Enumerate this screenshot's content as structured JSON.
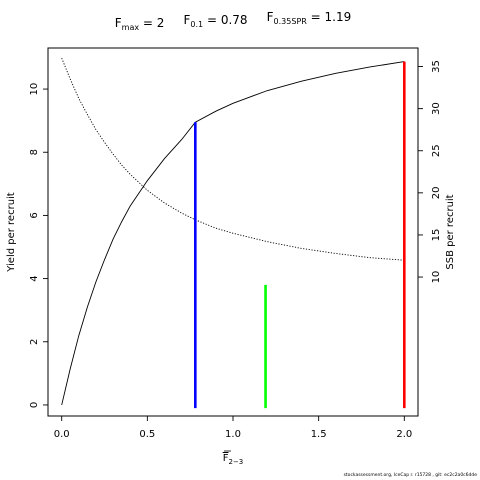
{
  "chart_data": {
    "type": "line",
    "title_parts": [
      {
        "base": "F",
        "sub": "max",
        "eq": "= 2"
      },
      {
        "base": "F",
        "sub": "0.1",
        "eq": "= 0.78"
      },
      {
        "base": "F",
        "sub": "0.35SPR",
        "eq": "= 1.19"
      }
    ],
    "xlabel": {
      "base": "F",
      "sub": "2−3",
      "overline": true
    },
    "ylabel_left": "Yield per recruit",
    "ylabel_right": "SSB per recruit",
    "xlim": [
      -0.08,
      2.08
    ],
    "ylim_left": [
      -0.35,
      11.3
    ],
    "ylim_right": [
      -6.5,
      37.2
    ],
    "x_ticks": [
      0,
      0.5,
      1,
      1.5,
      2
    ],
    "x_tick_labels": [
      "0.0",
      "0.5",
      "1.0",
      "1.5",
      "2.0"
    ],
    "y_left_ticks": [
      0,
      2,
      4,
      6,
      8,
      10
    ],
    "y_left_tick_labels": [
      "0",
      "2",
      "4",
      "6",
      "8",
      "10"
    ],
    "y_right_ticks": [
      10,
      15,
      20,
      25,
      30,
      35
    ],
    "y_right_tick_labels": [
      "10",
      "15",
      "20",
      "25",
      "30",
      "35"
    ],
    "series": [
      {
        "axis": "left",
        "style": "solid",
        "color": "#000000",
        "x": [
          0,
          0.05,
          0.1,
          0.15,
          0.2,
          0.25,
          0.3,
          0.35,
          0.4,
          0.5,
          0.6,
          0.7,
          0.78,
          0.9,
          1.0,
          1.2,
          1.4,
          1.6,
          1.8,
          2.0
        ],
        "y": [
          0,
          1.15,
          2.2,
          3.1,
          3.9,
          4.6,
          5.25,
          5.8,
          6.3,
          7.1,
          7.8,
          8.4,
          8.95,
          9.3,
          9.55,
          9.95,
          10.25,
          10.5,
          10.7,
          10.87
        ]
      },
      {
        "axis": "right",
        "style": "dotted",
        "color": "#000000",
        "x": [
          0,
          0.05,
          0.1,
          0.15,
          0.2,
          0.25,
          0.3,
          0.35,
          0.4,
          0.5,
          0.6,
          0.7,
          0.78,
          0.9,
          1.0,
          1.2,
          1.4,
          1.6,
          1.8,
          2.0
        ],
        "y": [
          36,
          33.5,
          31.2,
          29.3,
          27.5,
          26.0,
          24.6,
          23.3,
          22.2,
          20.3,
          18.8,
          17.6,
          16.8,
          15.8,
          15.2,
          14.2,
          13.4,
          12.8,
          12.3,
          12.0
        ]
      }
    ],
    "reference_lines": [
      {
        "name": "F0.1",
        "x": 0.78,
        "y_left_top": 8.95,
        "color": "#0000ff"
      },
      {
        "name": "F0.35SPR",
        "x": 1.19,
        "y_left_top": 3.8,
        "color": "#00ff00"
      },
      {
        "name": "Fmax",
        "x": 2.0,
        "y_left_top": 10.87,
        "color": "#ff0000"
      }
    ]
  },
  "footer_note": "stockassessment.org, IceCap r. r15728 , git: ec2c2a0c6dde"
}
